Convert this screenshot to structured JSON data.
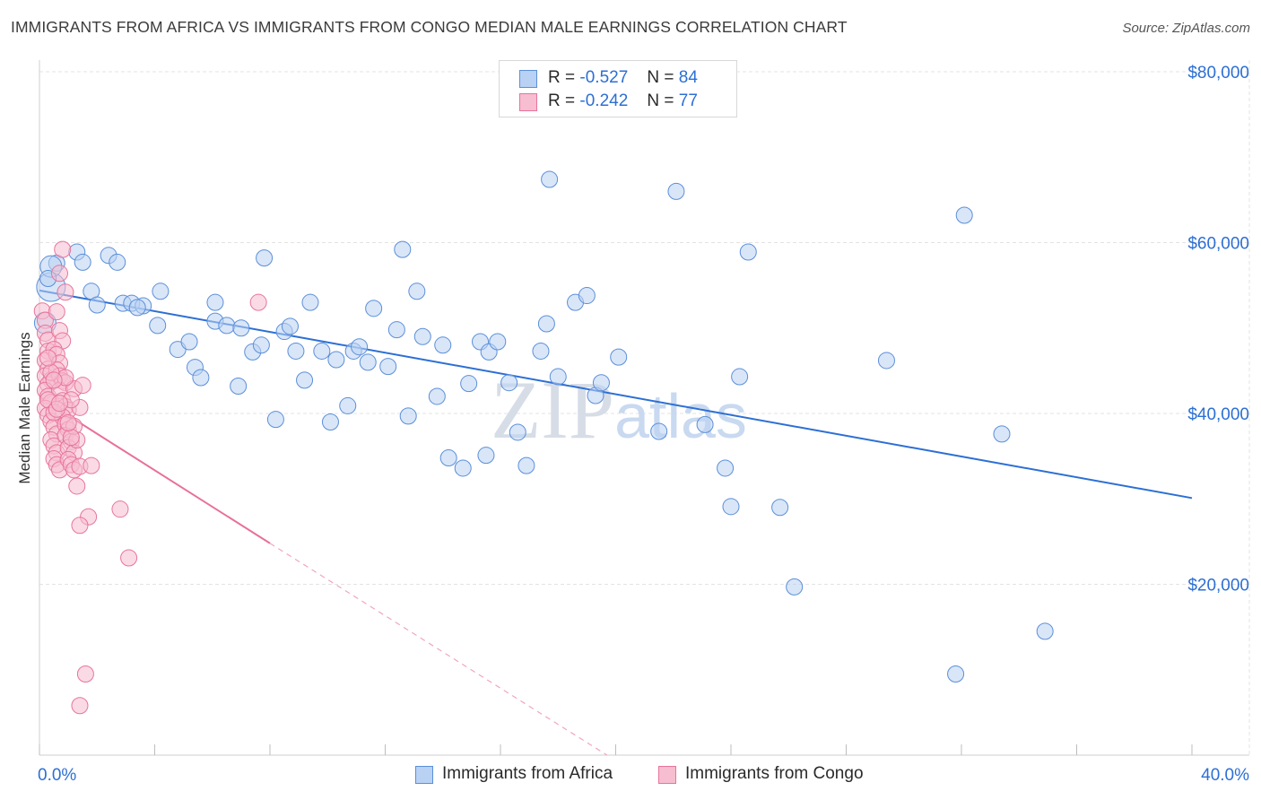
{
  "title": "IMMIGRANTS FROM AFRICA VS IMMIGRANTS FROM CONGO MEDIAN MALE EARNINGS CORRELATION CHART",
  "source": "Source: ZipAtlas.com",
  "watermark": "ZIPatlas",
  "legend": {
    "africa": {
      "r_label": "R =",
      "r_value": "-0.527",
      "n_label": "N =",
      "n_value": "84"
    },
    "congo": {
      "r_label": "R =",
      "r_value": "-0.242",
      "n_label": "N =",
      "n_value": "77"
    }
  },
  "colors": {
    "africa": "#5b8fd9",
    "africa_fill": "#b9d1f3",
    "congo": "#e8749c",
    "congo_fill": "#f6bed0",
    "axis_text": "#2c6fd4",
    "grid": "#e3e3e3"
  },
  "chart_data": {
    "type": "scatter",
    "title": "IMMIGRANTS FROM AFRICA VS IMMIGRANTS FROM CONGO MEDIAN MALE EARNINGS CORRELATION CHART",
    "xlabel": "",
    "ylabel": "Median Male Earnings",
    "xlim": [
      0,
      40
    ],
    "ylim": [
      0,
      80000
    ],
    "x_tick_labels": [
      "0.0%",
      "40.0%"
    ],
    "y_ticks": [
      20000,
      40000,
      60000,
      80000
    ],
    "y_tick_labels": [
      "$20,000",
      "$40,000",
      "$60,000",
      "$80,000"
    ],
    "grid": true,
    "legend_position": "top-center",
    "series": [
      {
        "name": "Immigrants from Africa",
        "color": "#5b8fd9",
        "r": -0.527,
        "n": 84,
        "trend": {
          "x": [
            0,
            40
          ],
          "y": [
            54400,
            30100
          ]
        },
        "points": [
          [
            0.4,
            54800
          ],
          [
            0.6,
            57600
          ],
          [
            1.3,
            58900
          ],
          [
            1.5,
            57700
          ],
          [
            2.4,
            58500
          ],
          [
            2.7,
            57700
          ],
          [
            1.8,
            54300
          ],
          [
            2.0,
            52700
          ],
          [
            2.9,
            52900
          ],
          [
            3.2,
            52900
          ],
          [
            3.6,
            52600
          ],
          [
            3.4,
            52400
          ],
          [
            4.2,
            54300
          ],
          [
            4.1,
            50300
          ],
          [
            4.8,
            47500
          ],
          [
            5.2,
            48400
          ],
          [
            5.4,
            45400
          ],
          [
            5.6,
            44200
          ],
          [
            6.1,
            50800
          ],
          [
            6.1,
            53000
          ],
          [
            6.5,
            50300
          ],
          [
            6.9,
            43200
          ],
          [
            7.0,
            50000
          ],
          [
            7.4,
            47200
          ],
          [
            7.7,
            48000
          ],
          [
            7.8,
            58200
          ],
          [
            8.2,
            39300
          ],
          [
            8.5,
            49600
          ],
          [
            8.7,
            50200
          ],
          [
            8.9,
            47300
          ],
          [
            9.2,
            43900
          ],
          [
            9.4,
            53000
          ],
          [
            9.8,
            47300
          ],
          [
            10.1,
            39000
          ],
          [
            10.3,
            46300
          ],
          [
            10.7,
            40900
          ],
          [
            10.9,
            47300
          ],
          [
            11.1,
            47800
          ],
          [
            11.4,
            46000
          ],
          [
            11.6,
            52300
          ],
          [
            12.1,
            45500
          ],
          [
            12.4,
            49800
          ],
          [
            12.6,
            59200
          ],
          [
            12.8,
            39700
          ],
          [
            13.3,
            49000
          ],
          [
            13.1,
            54300
          ],
          [
            13.8,
            42000
          ],
          [
            14.0,
            48000
          ],
          [
            14.2,
            34800
          ],
          [
            14.7,
            33600
          ],
          [
            14.9,
            43500
          ],
          [
            15.3,
            48400
          ],
          [
            15.6,
            47200
          ],
          [
            15.5,
            35100
          ],
          [
            15.9,
            48400
          ],
          [
            16.3,
            43600
          ],
          [
            16.6,
            37800
          ],
          [
            16.9,
            33900
          ],
          [
            17.4,
            47300
          ],
          [
            17.6,
            50500
          ],
          [
            17.7,
            67400
          ],
          [
            18.0,
            44300
          ],
          [
            18.6,
            53000
          ],
          [
            19.0,
            53800
          ],
          [
            19.3,
            42100
          ],
          [
            19.5,
            43600
          ],
          [
            20.1,
            46600
          ],
          [
            21.5,
            37900
          ],
          [
            22.1,
            66000
          ],
          [
            23.1,
            38700
          ],
          [
            23.8,
            33600
          ],
          [
            24.0,
            29100
          ],
          [
            24.3,
            44300
          ],
          [
            24.6,
            58900
          ],
          [
            25.7,
            29000
          ],
          [
            26.2,
            19700
          ],
          [
            29.4,
            46200
          ],
          [
            31.8,
            9500
          ],
          [
            32.1,
            63200
          ],
          [
            33.4,
            37600
          ],
          [
            34.9,
            14500
          ],
          [
            0.4,
            57200
          ],
          [
            0.3,
            55800
          ],
          [
            0.2,
            50600
          ]
        ]
      },
      {
        "name": "Immigrants from Congo",
        "color": "#e8749c",
        "r": -0.242,
        "n": 77,
        "trend": {
          "x": [
            0,
            8
          ],
          "y": [
            41900,
            24800
          ]
        },
        "trend_extension": {
          "x": [
            8,
            19.7
          ],
          "y": [
            24800,
            0
          ]
        },
        "points": [
          [
            0.1,
            52000
          ],
          [
            0.2,
            50900
          ],
          [
            0.2,
            49400
          ],
          [
            0.3,
            48600
          ],
          [
            0.3,
            47300
          ],
          [
            0.2,
            46200
          ],
          [
            0.3,
            45200
          ],
          [
            0.2,
            44400
          ],
          [
            0.4,
            43900
          ],
          [
            0.3,
            43400
          ],
          [
            0.2,
            42700
          ],
          [
            0.3,
            42000
          ],
          [
            0.4,
            41300
          ],
          [
            0.2,
            40600
          ],
          [
            0.3,
            39800
          ],
          [
            0.4,
            39100
          ],
          [
            0.5,
            38400
          ],
          [
            0.6,
            37600
          ],
          [
            0.4,
            36900
          ],
          [
            0.5,
            36200
          ],
          [
            0.6,
            35400
          ],
          [
            0.5,
            34700
          ],
          [
            0.6,
            34000
          ],
          [
            0.7,
            33400
          ],
          [
            0.8,
            59200
          ],
          [
            0.7,
            56400
          ],
          [
            0.9,
            54200
          ],
          [
            0.6,
            51900
          ],
          [
            0.7,
            49700
          ],
          [
            0.8,
            48500
          ],
          [
            0.5,
            47500
          ],
          [
            0.6,
            46900
          ],
          [
            0.7,
            45900
          ],
          [
            0.6,
            45100
          ],
          [
            0.7,
            44400
          ],
          [
            0.8,
            43800
          ],
          [
            0.9,
            43600
          ],
          [
            0.7,
            42700
          ],
          [
            0.8,
            41500
          ],
          [
            0.9,
            40800
          ],
          [
            1.0,
            40400
          ],
          [
            0.8,
            39600
          ],
          [
            0.9,
            38700
          ],
          [
            1.0,
            38100
          ],
          [
            0.9,
            37400
          ],
          [
            1.1,
            36700
          ],
          [
            1.0,
            36000
          ],
          [
            1.2,
            35400
          ],
          [
            1.0,
            34600
          ],
          [
            1.1,
            34000
          ],
          [
            1.2,
            33400
          ],
          [
            1.3,
            31500
          ],
          [
            1.4,
            33800
          ],
          [
            1.3,
            36900
          ],
          [
            1.2,
            42900
          ],
          [
            1.5,
            43300
          ],
          [
            1.4,
            40700
          ],
          [
            1.1,
            41600
          ],
          [
            0.9,
            44200
          ],
          [
            1.2,
            38500
          ],
          [
            1.1,
            37200
          ],
          [
            1.8,
            33900
          ],
          [
            1.7,
            27900
          ],
          [
            1.4,
            26900
          ],
          [
            2.8,
            28800
          ],
          [
            3.1,
            23100
          ],
          [
            7.6,
            53000
          ],
          [
            1.6,
            9500
          ],
          [
            1.4,
            5800
          ],
          [
            0.3,
            41600
          ],
          [
            0.5,
            40100
          ],
          [
            0.6,
            40500
          ],
          [
            0.4,
            44800
          ],
          [
            0.3,
            46500
          ],
          [
            0.5,
            43900
          ],
          [
            0.7,
            41200
          ],
          [
            1.0,
            38900
          ]
        ]
      }
    ]
  }
}
